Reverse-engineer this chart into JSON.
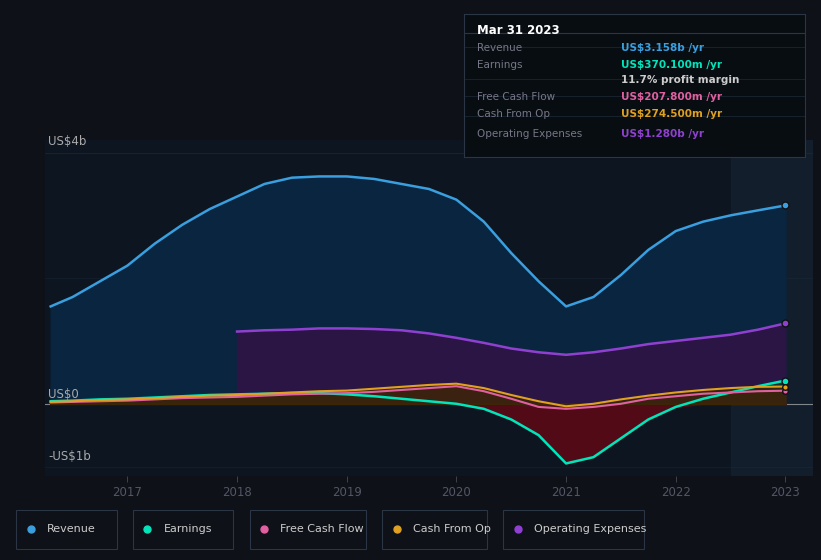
{
  "bg_color": "#0e1117",
  "chart_bg": "#0d1520",
  "tooltip_bg": "#080d12",
  "ylabel_top": "US$4b",
  "ylabel_zero": "US$0",
  "ylabel_neg": "-US$1b",
  "x_ticks": [
    2017,
    2018,
    2019,
    2020,
    2021,
    2022,
    2023
  ],
  "tooltip_title": "Mar 31 2023",
  "tooltip_rows": [
    {
      "label": "Revenue",
      "value": "US$3.158b /yr",
      "value_color": "#3a9fdf",
      "label_color": "#777788"
    },
    {
      "label": "Earnings",
      "value": "US$370.100m /yr",
      "value_color": "#00e5bb",
      "label_color": "#777788"
    },
    {
      "label": "",
      "value": "11.7% profit margin",
      "value_color": "#cccccc",
      "label_color": "#777788"
    },
    {
      "label": "Free Cash Flow",
      "value": "US$207.800m /yr",
      "value_color": "#e060a0",
      "label_color": "#777788"
    },
    {
      "label": "Cash From Op",
      "value": "US$274.500m /yr",
      "value_color": "#e0a020",
      "label_color": "#777788"
    },
    {
      "label": "Operating Expenses",
      "value": "US$1.280b /yr",
      "value_color": "#9040d0",
      "label_color": "#777788"
    }
  ],
  "legend": [
    {
      "label": "Revenue",
      "color": "#3a9fdf"
    },
    {
      "label": "Earnings",
      "color": "#00e5bb"
    },
    {
      "label": "Free Cash Flow",
      "color": "#e060a0"
    },
    {
      "label": "Cash From Op",
      "color": "#e0a020"
    },
    {
      "label": "Operating Expenses",
      "color": "#9040d0"
    }
  ],
  "series": {
    "x": [
      2016.3,
      2016.5,
      2016.75,
      2017.0,
      2017.25,
      2017.5,
      2017.75,
      2018.0,
      2018.25,
      2018.5,
      2018.75,
      2019.0,
      2019.25,
      2019.5,
      2019.75,
      2020.0,
      2020.25,
      2020.5,
      2020.75,
      2021.0,
      2021.25,
      2021.5,
      2021.75,
      2022.0,
      2022.25,
      2022.5,
      2022.75,
      2023.0
    ],
    "revenue": [
      1.55,
      1.7,
      1.95,
      2.2,
      2.55,
      2.85,
      3.1,
      3.3,
      3.5,
      3.6,
      3.62,
      3.62,
      3.58,
      3.5,
      3.42,
      3.25,
      2.9,
      2.4,
      1.95,
      1.55,
      1.7,
      2.05,
      2.45,
      2.75,
      2.9,
      3.0,
      3.08,
      3.158
    ],
    "earnings": [
      0.04,
      0.05,
      0.07,
      0.08,
      0.1,
      0.12,
      0.14,
      0.15,
      0.16,
      0.17,
      0.17,
      0.15,
      0.12,
      0.08,
      0.04,
      0.0,
      -0.08,
      -0.25,
      -0.5,
      -0.95,
      -0.85,
      -0.55,
      -0.25,
      -0.05,
      0.08,
      0.18,
      0.28,
      0.37
    ],
    "free_cash_flow": [
      0.02,
      0.03,
      0.04,
      0.05,
      0.07,
      0.09,
      0.1,
      0.11,
      0.13,
      0.15,
      0.16,
      0.17,
      0.19,
      0.22,
      0.25,
      0.28,
      0.2,
      0.08,
      -0.05,
      -0.08,
      -0.05,
      0.0,
      0.08,
      0.12,
      0.16,
      0.18,
      0.2,
      0.208
    ],
    "cash_from_op": [
      0.03,
      0.04,
      0.06,
      0.07,
      0.09,
      0.11,
      0.13,
      0.14,
      0.16,
      0.18,
      0.2,
      0.21,
      0.24,
      0.27,
      0.3,
      0.32,
      0.25,
      0.14,
      0.04,
      -0.04,
      0.0,
      0.07,
      0.13,
      0.18,
      0.22,
      0.25,
      0.27,
      0.2745
    ],
    "op_expenses_x": [
      2018.0,
      2018.25,
      2018.5,
      2018.75,
      2019.0,
      2019.25,
      2019.5,
      2019.75,
      2020.0,
      2020.25,
      2020.5,
      2020.75,
      2021.0,
      2021.25,
      2021.5,
      2021.75,
      2022.0,
      2022.25,
      2022.5,
      2022.75,
      2023.0
    ],
    "op_expenses": [
      1.15,
      1.17,
      1.18,
      1.2,
      1.2,
      1.19,
      1.17,
      1.12,
      1.05,
      0.97,
      0.88,
      0.82,
      0.78,
      0.82,
      0.88,
      0.95,
      1.0,
      1.05,
      1.1,
      1.18,
      1.28
    ]
  },
  "highlight_x_start": 2022.5,
  "highlight_x_end": 2023.3,
  "ylim": [
    -1.15,
    4.2
  ],
  "xlim": [
    2016.25,
    2023.25
  ]
}
